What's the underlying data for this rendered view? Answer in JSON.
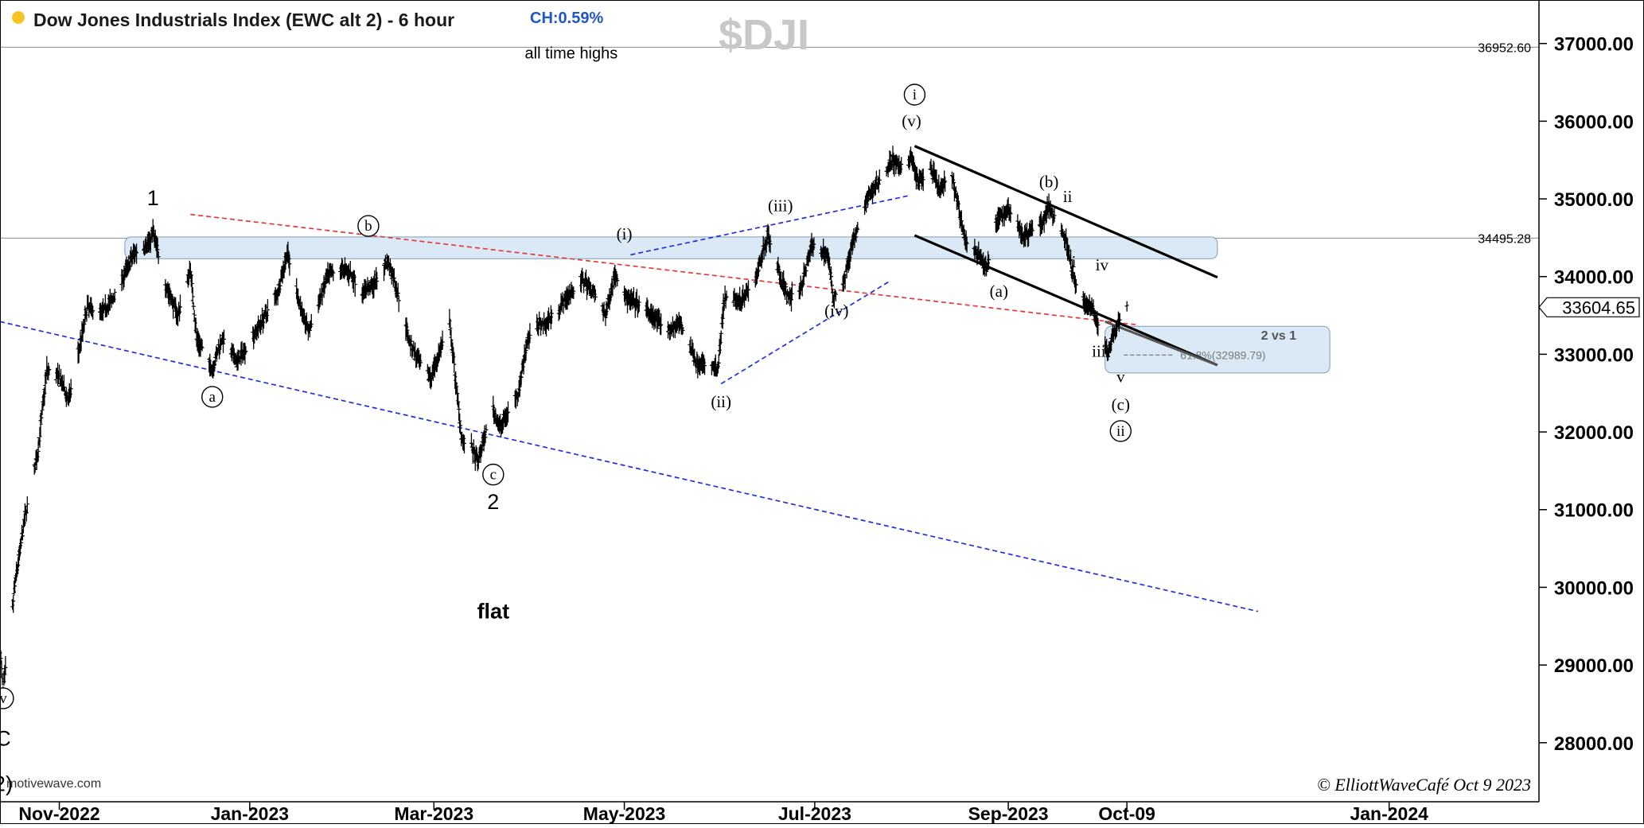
{
  "header": {
    "title": "Dow Jones Industrials Index (EWC alt 2) - 6 hour",
    "change": "CH:0.59%",
    "symbol": "$DJI",
    "status_color": "#f7c325"
  },
  "footer": {
    "watermark": "motivewave.com",
    "copyright": "© ElliottWaveCafé Oct 9 2023"
  },
  "colors": {
    "zone_fill": "#dae9f5",
    "zone_stroke": "#7f9cb8",
    "red_dash": "#e53a3a",
    "blue_dash": "#2130d6",
    "channel": "#000000",
    "bars": "#000000"
  },
  "chart_data": {
    "type": "line",
    "title": "Dow Jones Industrials Index (EWC alt 2) - 6 hour",
    "x_axis": {
      "type": "date",
      "range": [
        "2022-10-13",
        "2024-02-18"
      ],
      "ticks": [
        {
          "date": "2022-11-01",
          "label": "Nov-2022"
        },
        {
          "date": "2023-01-01",
          "label": "Jan-2023"
        },
        {
          "date": "2023-03-01",
          "label": "Mar-2023"
        },
        {
          "date": "2023-05-01",
          "label": "May-2023"
        },
        {
          "date": "2023-07-01",
          "label": "Jul-2023"
        },
        {
          "date": "2023-09-01",
          "label": "Sep-2023"
        },
        {
          "date": "2023-10-09",
          "label": "Oct-09"
        },
        {
          "date": "2024-01-01",
          "label": "Jan-2024"
        }
      ]
    },
    "y_axis": {
      "range": [
        27240,
        37560
      ],
      "ticks": [
        "28000.00",
        "29000.00",
        "30000.00",
        "31000.00",
        "32000.00",
        "33000.00",
        "34000.00",
        "35000.00",
        "36000.00",
        "37000.00"
      ],
      "current_price": "33604.65"
    },
    "price_path": [
      [
        "2022-10-13",
        29200
      ],
      [
        "2022-10-14",
        28660
      ],
      [
        "2022-10-18",
        30100
      ],
      [
        "2022-10-21",
        30900
      ],
      [
        "2022-10-25",
        31700
      ],
      [
        "2022-10-28",
        32800
      ],
      [
        "2022-11-01",
        32700
      ],
      [
        "2022-11-04",
        32400
      ],
      [
        "2022-11-08",
        33200
      ],
      [
        "2022-11-10",
        33600
      ],
      [
        "2022-11-15",
        33550
      ],
      [
        "2022-11-18",
        33700
      ],
      [
        "2022-11-25",
        34300
      ],
      [
        "2022-11-30",
        34450
      ],
      [
        "2022-12-01",
        34580
      ],
      [
        "2022-12-05",
        33900
      ],
      [
        "2022-12-09",
        33500
      ],
      [
        "2022-12-13",
        34100
      ],
      [
        "2022-12-15",
        33200
      ],
      [
        "2022-12-20",
        32800
      ],
      [
        "2022-12-23",
        33200
      ],
      [
        "2022-12-28",
        32900
      ],
      [
        "2023-01-03",
        33300
      ],
      [
        "2023-01-06",
        33500
      ],
      [
        "2023-01-10",
        33800
      ],
      [
        "2023-01-13",
        34300
      ],
      [
        "2023-01-18",
        33500
      ],
      [
        "2023-01-20",
        33300
      ],
      [
        "2023-01-26",
        34000
      ],
      [
        "2023-01-31",
        34100
      ],
      [
        "2023-02-02",
        34050
      ],
      [
        "2023-02-06",
        33800
      ],
      [
        "2023-02-10",
        33900
      ],
      [
        "2023-02-14",
        34200
      ],
      [
        "2023-02-16",
        34000
      ],
      [
        "2023-02-21",
        33200
      ],
      [
        "2023-02-24",
        32900
      ],
      [
        "2023-02-28",
        32700
      ],
      [
        "2023-03-06",
        33400
      ],
      [
        "2023-03-10",
        31900
      ],
      [
        "2023-03-13",
        31800
      ],
      [
        "2023-03-15",
        31600
      ],
      [
        "2023-03-17",
        31900
      ],
      [
        "2023-03-20",
        32300
      ],
      [
        "2023-03-22",
        32050
      ],
      [
        "2023-03-24",
        32200
      ],
      [
        "2023-03-28",
        32500
      ],
      [
        "2023-03-31",
        33200
      ],
      [
        "2023-04-04",
        33400
      ],
      [
        "2023-04-06",
        33400
      ],
      [
        "2023-04-10",
        33600
      ],
      [
        "2023-04-14",
        33800
      ],
      [
        "2023-04-18",
        33950
      ],
      [
        "2023-04-21",
        33800
      ],
      [
        "2023-04-25",
        33500
      ],
      [
        "2023-04-28",
        34050
      ],
      [
        "2023-05-02",
        33700
      ],
      [
        "2023-05-05",
        33650
      ],
      [
        "2023-05-10",
        33500
      ],
      [
        "2023-05-15",
        33300
      ],
      [
        "2023-05-19",
        33400
      ],
      [
        "2023-05-24",
        32900
      ],
      [
        "2023-05-31",
        32800
      ],
      [
        "2023-06-02",
        33700
      ],
      [
        "2023-06-07",
        33700
      ],
      [
        "2023-06-12",
        33950
      ],
      [
        "2023-06-16",
        34550
      ],
      [
        "2023-06-20",
        34000
      ],
      [
        "2023-06-23",
        33700
      ],
      [
        "2023-06-27",
        33900
      ],
      [
        "2023-06-30",
        34400
      ],
      [
        "2023-07-05",
        34300
      ],
      [
        "2023-07-07",
        33750
      ],
      [
        "2023-07-10",
        33900
      ],
      [
        "2023-07-13",
        34400
      ],
      [
        "2023-07-18",
        35000
      ],
      [
        "2023-07-21",
        35200
      ],
      [
        "2023-07-26",
        35500
      ],
      [
        "2023-07-28",
        35400
      ],
      [
        "2023-08-01",
        35550
      ],
      [
        "2023-08-03",
        35200
      ],
      [
        "2023-08-07",
        35400
      ],
      [
        "2023-08-10",
        35100
      ],
      [
        "2023-08-14",
        35300
      ],
      [
        "2023-08-18",
        34500
      ],
      [
        "2023-08-22",
        34300
      ],
      [
        "2023-08-25",
        34100
      ],
      [
        "2023-08-29",
        34800
      ],
      [
        "2023-08-31",
        34800
      ],
      [
        "2023-09-01",
        34900
      ],
      [
        "2023-09-06",
        34500
      ],
      [
        "2023-09-08",
        34600
      ],
      [
        "2023-09-12",
        34700
      ],
      [
        "2023-09-14",
        34900
      ],
      [
        "2023-09-18",
        34600
      ],
      [
        "2023-09-20",
        34400
      ],
      [
        "2023-09-22",
        33950
      ],
      [
        "2023-09-26",
        33600
      ],
      [
        "2023-09-28",
        33600
      ],
      [
        "2023-10-03",
        33000
      ],
      [
        "2023-10-04",
        33200
      ],
      [
        "2023-10-05",
        33300
      ],
      [
        "2023-10-06",
        33400
      ],
      [
        "2023-10-09",
        33604.65
      ]
    ],
    "horizontal_levels": [
      {
        "price": 36952.6,
        "label": "36952.60"
      },
      {
        "price": 34495.28,
        "label": "34495.28"
      }
    ],
    "resistance_zone": {
      "start": "2022-11-22",
      "end": "2023-11-07",
      "top": 34510,
      "bottom": 34230
    },
    "target_zone": {
      "start": "2023-10-02",
      "end": "2023-12-13",
      "top": 33360,
      "bottom": 32760,
      "label": "2 vs 1"
    },
    "fib_level": {
      "start": "2023-10-08",
      "end": "2023-12-13",
      "price": 32989.79,
      "label": "61.8%(32989.79)"
    },
    "red_dashed_trendline": [
      [
        "2022-12-13",
        34800
      ],
      [
        "2023-10-12",
        33380
      ]
    ],
    "blue_dashed_lines": [
      [
        [
          "2022-10-13",
          33420
        ],
        [
          "2023-11-20",
          29690
        ]
      ],
      [
        [
          "2023-05-03",
          34280
        ],
        [
          "2023-07-31",
          35040
        ]
      ],
      [
        [
          "2023-06-01",
          32620
        ],
        [
          "2023-07-25",
          33940
        ]
      ]
    ],
    "channel_lines": [
      [
        [
          "2023-08-02",
          35680
        ],
        [
          "2023-11-07",
          33990
        ]
      ],
      [
        [
          "2023-08-02",
          34530
        ],
        [
          "2023-11-07",
          32860
        ]
      ],
      [
        [
          "2023-10-02",
          33420
        ],
        [
          "2023-11-07",
          32860
        ]
      ]
    ],
    "annotations": [
      {
        "text": "all time highs",
        "date": "2023-04-14",
        "price": 36810,
        "style": "plain"
      },
      {
        "text": "flat",
        "date": "2023-03-20",
        "price": 29600,
        "style": "bold"
      },
      {
        "text": "1",
        "date": "2022-12-01",
        "price": 34920,
        "style": "plain-large"
      },
      {
        "text": "2",
        "date": "2023-03-20",
        "price": 31010,
        "style": "plain-large"
      },
      {
        "text": "C",
        "date": "2022-10-14",
        "price": 27960,
        "style": "plain-large"
      },
      {
        "text": "2)",
        "date": "2022-10-14",
        "price": 27380,
        "style": "plain-large"
      },
      {
        "text": "v",
        "date": "2022-10-14",
        "price": 28500,
        "style": "circled"
      },
      {
        "text": "a",
        "date": "2022-12-20",
        "price": 32380,
        "style": "circled"
      },
      {
        "text": "b",
        "date": "2023-02-08",
        "price": 34580,
        "style": "circled"
      },
      {
        "text": "c",
        "date": "2023-03-20",
        "price": 31380,
        "style": "circled"
      },
      {
        "text": "i",
        "date": "2023-08-02",
        "price": 36270,
        "style": "circled"
      },
      {
        "text": "ii",
        "date": "2023-10-07",
        "price": 31940,
        "style": "circled"
      },
      {
        "text": "(i)",
        "date": "2023-05-01",
        "price": 34480,
        "style": "wave"
      },
      {
        "text": "(ii)",
        "date": "2023-06-01",
        "price": 32320,
        "style": "wave"
      },
      {
        "text": "(iii)",
        "date": "2023-06-20",
        "price": 34840,
        "style": "wave"
      },
      {
        "text": "(iv)",
        "date": "2023-07-08",
        "price": 33490,
        "style": "wave"
      },
      {
        "text": "(v)",
        "date": "2023-08-01",
        "price": 35930,
        "style": "wave"
      },
      {
        "text": "(a)",
        "date": "2023-08-29",
        "price": 33740,
        "style": "wave"
      },
      {
        "text": "(b)",
        "date": "2023-09-14",
        "price": 35150,
        "style": "wave"
      },
      {
        "text": "(c)",
        "date": "2023-10-07",
        "price": 32280,
        "style": "wave"
      },
      {
        "text": "ii",
        "date": "2023-09-20",
        "price": 34960,
        "style": "wave"
      },
      {
        "text": "i",
        "date": "2023-09-22",
        "price": 34120,
        "style": "wave"
      },
      {
        "text": "iv",
        "date": "2023-10-01",
        "price": 34080,
        "style": "wave"
      },
      {
        "text": "iii",
        "date": "2023-09-30",
        "price": 32970,
        "style": "wave"
      },
      {
        "text": "v",
        "date": "2023-10-07",
        "price": 32640,
        "style": "wave"
      }
    ]
  }
}
